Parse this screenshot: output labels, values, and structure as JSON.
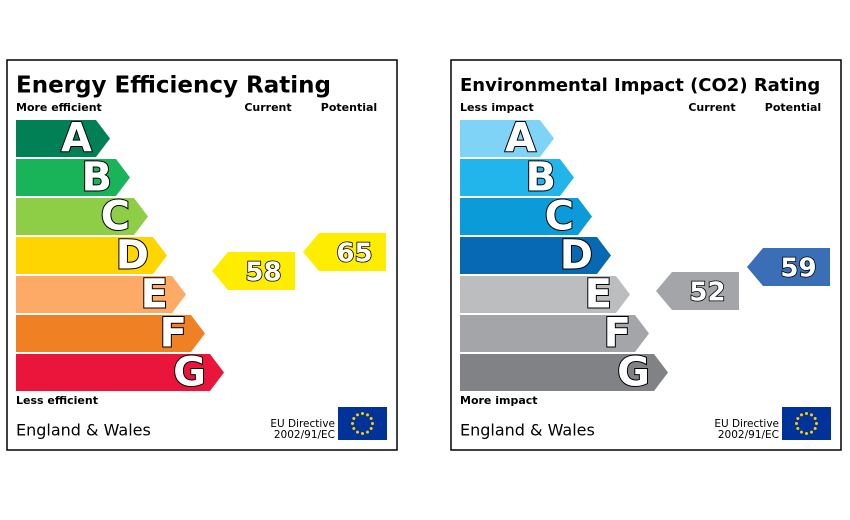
{
  "panels": [
    {
      "title": "Energy Efficiency Rating",
      "top_label": "More efficient",
      "bottom_label": "Less efficient",
      "current_label": "Current",
      "potential_label": "Potential",
      "bands": [
        {
          "letter": "A",
          "color": "#008054"
        },
        {
          "letter": "B",
          "color": "#19b459"
        },
        {
          "letter": "C",
          "color": "#8dce46"
        },
        {
          "letter": "D",
          "color": "#ffd500"
        },
        {
          "letter": "E",
          "color": "#fcaa65"
        },
        {
          "letter": "F",
          "color": "#ef8023"
        },
        {
          "letter": "G",
          "color": "#e9153b"
        }
      ],
      "current": {
        "value": 58,
        "color": "#ffed00"
      },
      "potential": {
        "value": 65,
        "color": "#ffed00"
      },
      "region": "England & Wales",
      "directive": [
        "EU Directive",
        "2002/91/EC"
      ]
    },
    {
      "title": "Environmental Impact (CO2) Rating",
      "top_label": "Less impact",
      "bottom_label": "More impact",
      "current_label": "Current",
      "potential_label": "Potential",
      "bands": [
        {
          "letter": "A",
          "color": "#7fd3f7"
        },
        {
          "letter": "B",
          "color": "#22b5ec"
        },
        {
          "letter": "C",
          "color": "#0a9bd8"
        },
        {
          "letter": "D",
          "color": "#0768b4"
        },
        {
          "letter": "E",
          "color": "#bbbdbf"
        },
        {
          "letter": "F",
          "color": "#a3a5a8"
        },
        {
          "letter": "G",
          "color": "#808285"
        }
      ],
      "current": {
        "value": 52,
        "color": "#a3a5a8"
      },
      "potential": {
        "value": 59,
        "color": "#3a6fb8"
      },
      "region": "England & Wales",
      "directive": [
        "EU Directive",
        "2002/91/EC"
      ]
    }
  ]
}
